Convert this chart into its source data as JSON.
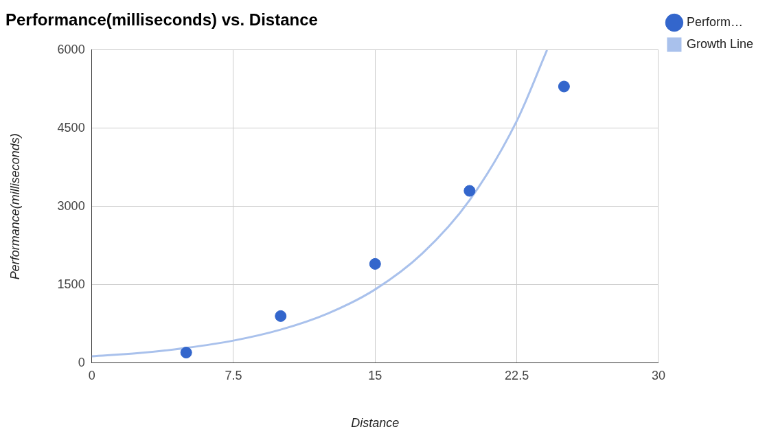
{
  "chart_data": {
    "type": "scatter",
    "title": "Performance(milliseconds) vs. Distance",
    "xlabel": "Distance",
    "ylabel": "Performance(milliseconds)",
    "xlim": [
      0,
      30
    ],
    "xticks": [
      0,
      7.5,
      15,
      22.5,
      30
    ],
    "ylim": [
      0,
      6000
    ],
    "yticks": [
      0,
      1500,
      3000,
      4500,
      6000
    ],
    "grid": true,
    "legend": "top right",
    "series": [
      {
        "name": "Perform…",
        "color": "#3366cc",
        "marker": "circle",
        "x": [
          5,
          10,
          15,
          20,
          25
        ],
        "values": [
          200,
          900,
          1900,
          3300,
          5300
        ]
      },
      {
        "name": "Growth Line",
        "type": "line",
        "marker": "none",
        "color": "#a9c1ec",
        "x": [
          0,
          2.5,
          5,
          7.5,
          10,
          12.5,
          15,
          17.5,
          20,
          22.5,
          24.1
        ],
        "values": [
          130,
          190,
          290,
          430,
          640,
          950,
          1410,
          2100,
          3120,
          4640,
          6000
        ]
      }
    ]
  }
}
